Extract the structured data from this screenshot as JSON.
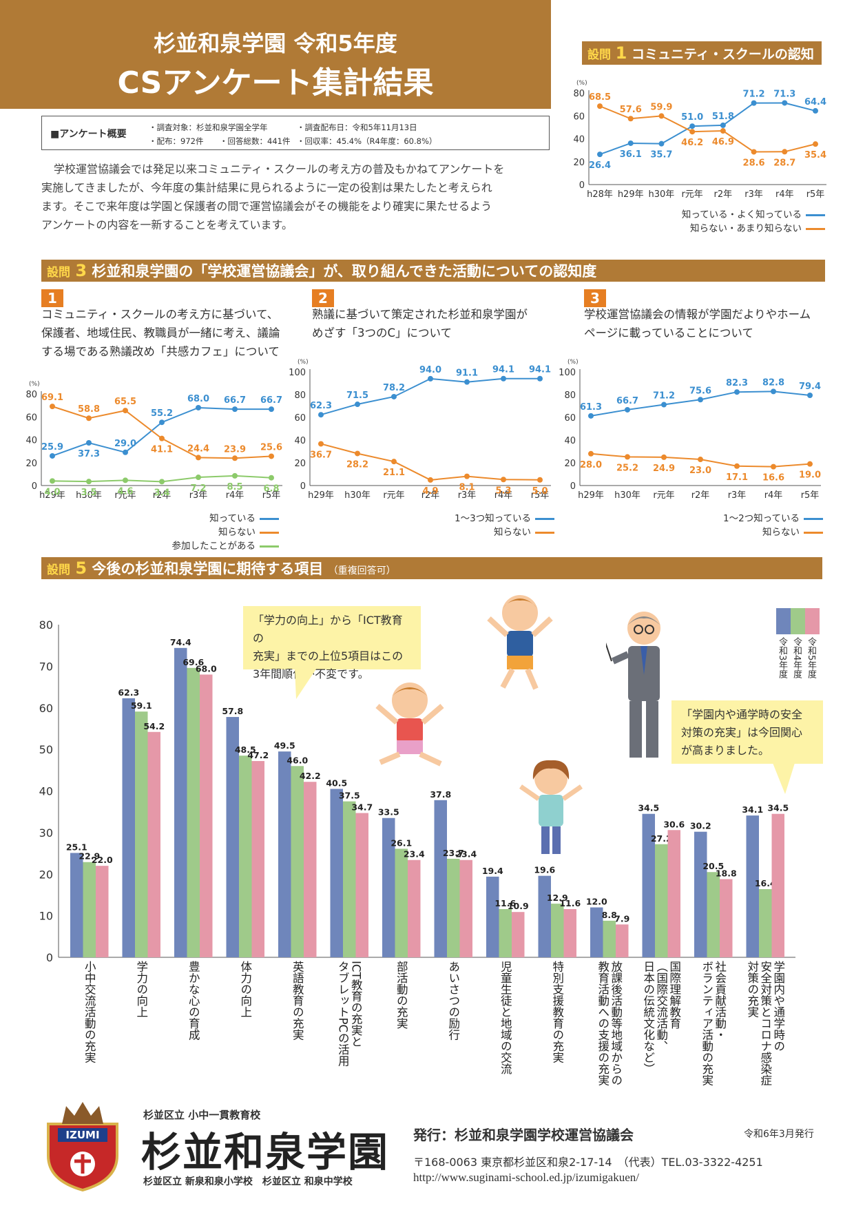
{
  "header": {
    "subtitle": "杉並和泉学園 令和5年度",
    "title": "CSアンケート集計結果"
  },
  "overview": {
    "label": "■アンケート概要",
    "target": "・調査対象：杉並和泉学園全学年",
    "date": "・調査配布日：令和5年11月13日",
    "distributed": "・配布：972件",
    "answers": "・回答総数：441件",
    "rate": "・回収率：45.4%（R4年度：60.8%）"
  },
  "intro": {
    "line1": "学校運営協議会では発足以来コミュニティ・スクールの考え方の普及もかねてアンケートを",
    "line2": "実施してきましたが、今年度の集計結果に見られるように一定の役割は果たしたと考えられ",
    "line3": "ます。そこで来年度は学園と保護者の間で運営協議会がその機能をより確実に果たせるよう",
    "line4": "アンケートの内容を一新することを考えています。"
  },
  "q1": {
    "prefix": "設問",
    "num": "1",
    "title": "コミュニティ・スクールの認知"
  },
  "q3": {
    "prefix": "設問",
    "num": "3",
    "title": "杉並和泉学園の「学校運営協議会」が、取り組んできた活動についての認知度"
  },
  "q3items": [
    {
      "num": "1",
      "line1": "コミュニティ・スクールの考え方に基づいて、",
      "line2": "保護者、地域住民、教職員が一緒に考え、議論",
      "line3": "する場である熟議改め「共感カフェ」について"
    },
    {
      "num": "2",
      "line1": "熟議に基づいて策定された杉並和泉学園が",
      "line2": "めざす「3つのC」について",
      "line3": ""
    },
    {
      "num": "3",
      "line1": "学校運営協議会の情報が学園だよりやホーム",
      "line2": "ページに載っていることについて",
      "line3": ""
    }
  ],
  "q5": {
    "prefix": "設問",
    "num": "5",
    "title": "今後の杉並和泉学園に期待する項目",
    "note": "（重複回答可）"
  },
  "speech1": {
    "line1": "「学力の向上」から「ICT教育の",
    "line2": "充実」までの上位5項目はこの",
    "line3": "3年間順位が不変です。"
  },
  "speech2": {
    "line1": "「学園内や通学時の安全",
    "line2": "対策の充実」は今回関心",
    "line3": "が高まりました。"
  },
  "footer": {
    "school_type": "杉並区立 小中一貫教育校",
    "school_name": "杉並和泉学園",
    "school_sub": "杉並区立 新泉和泉小学校　杉並区立 和泉中学校",
    "logo_text": "IZUMI",
    "publisher": "発行：杉並和泉学園学校運営協議会",
    "address": "〒168-0063  東京都杉並区和泉2-17-14　（代表）TEL.03-3322-4251",
    "url": "http://www.suginami-school.ed.jp/izumigakuen/",
    "issued": "令和6年3月発行"
  },
  "colors": {
    "blue": "#3b8fd0",
    "orange": "#ec8a2c",
    "green": "#8cca6a",
    "brown": "#b07a36",
    "bar_blue": "#6f86bb",
    "bar_green": "#9fca8a",
    "bar_pink": "#e598a8"
  },
  "chart_data": [
    {
      "id": "q1",
      "type": "line",
      "unit_label": "(%)",
      "categories": [
        "h28年",
        "h29年",
        "h30年",
        "r元年",
        "r2年",
        "r3年",
        "r4年",
        "r5年"
      ],
      "ylim": [
        0,
        80
      ],
      "yticks": [
        "0",
        "20",
        "40",
        "60",
        "80"
      ],
      "series": [
        {
          "name": "知っている・よく知っている",
          "color": "#3b8fd0",
          "values": [
            26.4,
            36.1,
            35.7,
            51.0,
            51.8,
            71.2,
            71.3,
            64.4
          ],
          "labels": [
            "26.4",
            "36.1",
            "35.7",
            "51.0",
            "51.8",
            "71.2",
            "71.3",
            "64.4"
          ]
        },
        {
          "name": "知らない・あまり知らない",
          "color": "#ec8a2c",
          "values": [
            68.5,
            57.6,
            59.9,
            46.2,
            46.9,
            28.6,
            28.7,
            35.4
          ],
          "labels": [
            "68.5",
            "57.6",
            "59.9",
            "46.2",
            "46.9",
            "28.6",
            "28.7",
            "35.4"
          ]
        }
      ]
    },
    {
      "id": "q3-1",
      "type": "line",
      "unit_label": "(%)",
      "categories": [
        "h29年",
        "h30年",
        "r元年",
        "r2年",
        "r3年",
        "r4年",
        "r5年"
      ],
      "ylim": [
        0,
        80
      ],
      "yticks": [
        "0",
        "20",
        "40",
        "60",
        "80"
      ],
      "series": [
        {
          "name": "知っている",
          "color": "#3b8fd0",
          "values": [
            25.9,
            37.3,
            29.0,
            55.2,
            68.0,
            66.7,
            66.7
          ],
          "labels": [
            "25.9",
            "37.3",
            "29.0",
            "55.2",
            "68.0",
            "66.7",
            "66.7"
          ]
        },
        {
          "name": "知らない",
          "color": "#ec8a2c",
          "values": [
            69.1,
            58.8,
            65.5,
            41.1,
            24.4,
            23.9,
            25.6
          ],
          "labels": [
            "69.1",
            "58.8",
            "65.5",
            "41.1",
            "24.4",
            "23.9",
            "25.6"
          ]
        },
        {
          "name": "参加したことがある",
          "color": "#8cca6a",
          "values": [
            4.0,
            3.5,
            4.6,
            3.4,
            7.2,
            8.5,
            6.8
          ],
          "labels": [
            "4.0",
            "3.5",
            "4.6",
            "3.4",
            "7.2",
            "8.5",
            "6.8"
          ]
        }
      ]
    },
    {
      "id": "q3-2",
      "type": "line",
      "unit_label": "(%)",
      "categories": [
        "h29年",
        "h30年",
        "r元年",
        "r2年",
        "r3年",
        "r4年",
        "r5年"
      ],
      "ylim": [
        0,
        100
      ],
      "yticks": [
        "0",
        "20",
        "40",
        "60",
        "80",
        "100"
      ],
      "series": [
        {
          "name": "1〜3つ知っている",
          "color": "#3b8fd0",
          "values": [
            62.3,
            71.5,
            78.2,
            94.0,
            91.1,
            94.1,
            94.1
          ],
          "labels": [
            "62.3",
            "71.5",
            "78.2",
            "94.0",
            "91.1",
            "94.1",
            "94.1"
          ]
        },
        {
          "name": "知らない",
          "color": "#ec8a2c",
          "values": [
            36.7,
            28.2,
            21.1,
            4.9,
            8.1,
            5.3,
            5.0
          ],
          "labels": [
            "36.7",
            "28.2",
            "21.1",
            "4.9",
            "8.1",
            "5.3",
            "5.0"
          ]
        }
      ]
    },
    {
      "id": "q3-3",
      "type": "line",
      "unit_label": "(%)",
      "categories": [
        "h29年",
        "h30年",
        "r元年",
        "r2年",
        "r3年",
        "r4年",
        "r5年"
      ],
      "ylim": [
        0,
        100
      ],
      "yticks": [
        "0",
        "20",
        "40",
        "60",
        "80",
        "100"
      ],
      "series": [
        {
          "name": "1〜2つ知っている",
          "color": "#3b8fd0",
          "values": [
            61.3,
            66.7,
            71.2,
            75.6,
            82.3,
            82.8,
            79.4
          ],
          "labels": [
            "61.3",
            "66.7",
            "71.2",
            "75.6",
            "82.3",
            "82.8",
            "79.4"
          ]
        },
        {
          "name": "知らない",
          "color": "#ec8a2c",
          "values": [
            28.0,
            25.2,
            24.9,
            23.0,
            17.1,
            16.6,
            19.0
          ],
          "labels": [
            "28.0",
            "25.2",
            "24.9",
            "23.0",
            "17.1",
            "16.6",
            "19.0"
          ]
        }
      ]
    },
    {
      "id": "q5",
      "type": "bar",
      "ylim": [
        0,
        80
      ],
      "yticks": [
        "0",
        "10",
        "20",
        "30",
        "40",
        "50",
        "60",
        "70",
        "80"
      ],
      "categories": [
        [
          "小中交流活動の充実"
        ],
        [
          "学力の向上"
        ],
        [
          "豊かな心の育成"
        ],
        [
          "体力の向上"
        ],
        [
          "英語教育の充実"
        ],
        [
          "ICT教育の充実と",
          "タブレットPCの活用"
        ],
        [
          "部活動の充実"
        ],
        [
          "あいさつの励行"
        ],
        [
          "児童生徒と地域の交流"
        ],
        [
          "特別支援教育の充実"
        ],
        [
          "放課後活動等地域からの",
          "教育活動への支援の充実"
        ],
        [
          "国際理解教育",
          "（国際交流活動、",
          "日本の伝統文化など）"
        ],
        [
          "社会貢献活動・",
          "ボランティア活動の充実"
        ],
        [
          "学園内や通学時の",
          "安全対策とコロナ感染症",
          "対策の充実"
        ]
      ],
      "series": [
        {
          "name": "令和3年度",
          "color": "#6f86bb",
          "values": [
            25.1,
            62.3,
            74.4,
            57.8,
            49.5,
            40.5,
            33.5,
            37.8,
            19.4,
            19.6,
            12.0,
            34.5,
            30.2,
            34.1
          ],
          "labels": [
            "25.1",
            "62.3",
            "74.4",
            "57.8",
            "49.5",
            "40.5",
            "33.5",
            "37.8",
            "19.4",
            "19.6",
            "12.0",
            "34.5",
            "30.2",
            "34.1"
          ]
        },
        {
          "name": "令和4年度",
          "color": "#9fca8a",
          "values": [
            22.9,
            59.1,
            69.6,
            48.5,
            46.0,
            37.5,
            26.1,
            23.7,
            11.6,
            12.9,
            8.8,
            27.2,
            20.5,
            16.4
          ],
          "labels": [
            "22.9",
            "59.1",
            "69.6",
            "48.5",
            "46.0",
            "37.5",
            "26.1",
            "23.7",
            "11.6",
            "12.9",
            "8.8",
            "27.2",
            "20.5",
            "16.4"
          ]
        },
        {
          "name": "令和5年度",
          "color": "#e598a8",
          "values": [
            22.0,
            54.2,
            68.0,
            47.2,
            42.2,
            34.7,
            23.4,
            23.4,
            10.9,
            11.6,
            7.9,
            30.6,
            18.8,
            34.5
          ],
          "labels": [
            "22.0",
            "54.2",
            "68.0",
            "47.2",
            "42.2",
            "34.7",
            "23.4",
            "23.4",
            "10.9",
            "11.6",
            "7.9",
            "30.6",
            "18.8",
            "34.5"
          ]
        }
      ]
    }
  ]
}
